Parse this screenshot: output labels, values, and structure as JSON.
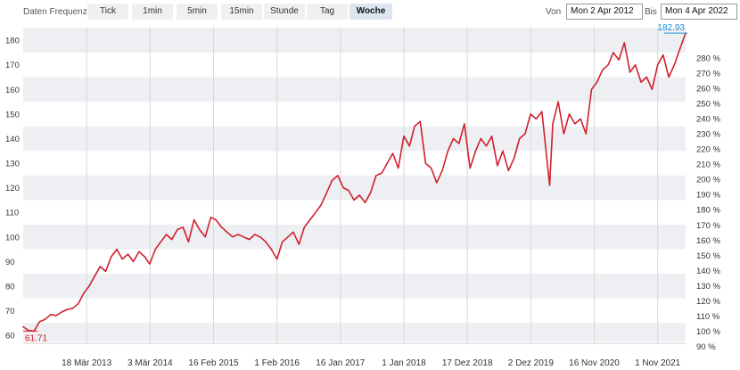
{
  "toolbar": {
    "frequency_label": "Daten Frequenz",
    "frequencies": [
      "Tick",
      "1min",
      "5min",
      "15min",
      "Stunde",
      "Tag",
      "Woche"
    ],
    "active_frequency": "Woche",
    "from_label": "Von",
    "from_value": "Mon 2 Apr 2012",
    "to_label": "Bis",
    "to_value": "Mon 4 Apr 2022"
  },
  "colors": {
    "line": "#d0202e",
    "band": "#eeeff2",
    "grid_vertical": "#d8d8d8",
    "last_value": "#1f8fd0",
    "min_value": "#d0202e"
  },
  "chart_data": {
    "type": "line",
    "series": [
      {
        "points": [
          [
            "2012-04-02",
            63.5
          ],
          [
            "2012-05-01",
            62.0
          ],
          [
            "2012-06-01",
            61.71
          ],
          [
            "2012-07-01",
            65.5
          ],
          [
            "2012-08-01",
            66.5
          ],
          [
            "2012-09-01",
            68.5
          ],
          [
            "2012-10-01",
            68.0
          ],
          [
            "2012-11-01",
            69.5
          ],
          [
            "2012-12-01",
            70.5
          ],
          [
            "2013-01-01",
            71.0
          ],
          [
            "2013-02-01",
            73.0
          ],
          [
            "2013-03-01",
            77.0
          ],
          [
            "2013-04-01",
            80.0
          ],
          [
            "2013-05-01",
            84.0
          ],
          [
            "2013-06-01",
            88.0
          ],
          [
            "2013-07-01",
            86.0
          ],
          [
            "2013-08-01",
            92.0
          ],
          [
            "2013-09-01",
            95.0
          ],
          [
            "2013-10-01",
            91.0
          ],
          [
            "2013-11-01",
            93.0
          ],
          [
            "2013-12-01",
            90.0
          ],
          [
            "2014-01-01",
            94.0
          ],
          [
            "2014-02-01",
            92.0
          ],
          [
            "2014-03-01",
            89.0
          ],
          [
            "2014-04-01",
            95.0
          ],
          [
            "2014-05-01",
            98.0
          ],
          [
            "2014-06-01",
            101.0
          ],
          [
            "2014-07-01",
            99.0
          ],
          [
            "2014-08-01",
            103.0
          ],
          [
            "2014-09-01",
            104.0
          ],
          [
            "2014-10-01",
            98.0
          ],
          [
            "2014-11-01",
            107.0
          ],
          [
            "2014-12-01",
            103.0
          ],
          [
            "2015-01-01",
            100.0
          ],
          [
            "2015-02-01",
            108.0
          ],
          [
            "2015-03-01",
            107.0
          ],
          [
            "2015-04-01",
            104.0
          ],
          [
            "2015-05-01",
            102.0
          ],
          [
            "2015-06-01",
            100.0
          ],
          [
            "2015-07-01",
            101.0
          ],
          [
            "2015-08-01",
            100.0
          ],
          [
            "2015-09-01",
            99.0
          ],
          [
            "2015-10-01",
            101.0
          ],
          [
            "2015-11-01",
            100.0
          ],
          [
            "2015-12-01",
            98.0
          ],
          [
            "2016-01-01",
            95.0
          ],
          [
            "2016-02-01",
            91.0
          ],
          [
            "2016-03-01",
            98.0
          ],
          [
            "2016-04-01",
            100.0
          ],
          [
            "2016-05-01",
            102.0
          ],
          [
            "2016-06-01",
            97.0
          ],
          [
            "2016-07-01",
            104.0
          ],
          [
            "2016-08-01",
            107.0
          ],
          [
            "2016-09-01",
            110.0
          ],
          [
            "2016-10-01",
            113.0
          ],
          [
            "2016-11-01",
            118.0
          ],
          [
            "2016-12-01",
            123.0
          ],
          [
            "2017-01-01",
            125.0
          ],
          [
            "2017-02-01",
            120.0
          ],
          [
            "2017-03-01",
            119.0
          ],
          [
            "2017-04-01",
            115.0
          ],
          [
            "2017-05-01",
            117.0
          ],
          [
            "2017-06-01",
            114.0
          ],
          [
            "2017-07-01",
            118.0
          ],
          [
            "2017-08-01",
            125.0
          ],
          [
            "2017-09-01",
            126.0
          ],
          [
            "2017-10-01",
            130.0
          ],
          [
            "2017-11-01",
            134.0
          ],
          [
            "2017-12-01",
            128.0
          ],
          [
            "2018-01-01",
            141.0
          ],
          [
            "2018-02-01",
            137.0
          ],
          [
            "2018-03-01",
            145.0
          ],
          [
            "2018-04-01",
            147.0
          ],
          [
            "2018-05-01",
            130.0
          ],
          [
            "2018-06-01",
            128.0
          ],
          [
            "2018-07-01",
            122.0
          ],
          [
            "2018-08-01",
            127.0
          ],
          [
            "2018-09-01",
            135.0
          ],
          [
            "2018-10-01",
            140.0
          ],
          [
            "2018-11-01",
            138.0
          ],
          [
            "2018-12-01",
            146.0
          ],
          [
            "2019-01-01",
            128.0
          ],
          [
            "2019-02-01",
            135.0
          ],
          [
            "2019-03-01",
            140.0
          ],
          [
            "2019-04-01",
            137.0
          ],
          [
            "2019-05-01",
            141.0
          ],
          [
            "2019-06-01",
            129.0
          ],
          [
            "2019-07-01",
            135.0
          ],
          [
            "2019-08-01",
            127.0
          ],
          [
            "2019-09-01",
            132.0
          ],
          [
            "2019-10-01",
            140.0
          ],
          [
            "2019-11-01",
            142.0
          ],
          [
            "2019-12-01",
            150.0
          ],
          [
            "2020-01-01",
            148.0
          ],
          [
            "2020-02-01",
            151.0
          ],
          [
            "2020-03-15",
            121.0
          ],
          [
            "2020-04-01",
            146.0
          ],
          [
            "2020-05-01",
            155.0
          ],
          [
            "2020-06-01",
            142.0
          ],
          [
            "2020-07-01",
            150.0
          ],
          [
            "2020-08-01",
            146.0
          ],
          [
            "2020-09-01",
            148.0
          ],
          [
            "2020-10-01",
            142.0
          ],
          [
            "2020-11-01",
            160.0
          ],
          [
            "2020-12-01",
            163.0
          ],
          [
            "2021-01-01",
            168.0
          ],
          [
            "2021-02-01",
            170.0
          ],
          [
            "2021-03-01",
            175.0
          ],
          [
            "2021-04-01",
            172.0
          ],
          [
            "2021-05-01",
            179.0
          ],
          [
            "2021-06-01",
            167.0
          ],
          [
            "2021-07-01",
            170.0
          ],
          [
            "2021-08-01",
            163.0
          ],
          [
            "2021-09-01",
            165.0
          ],
          [
            "2021-10-01",
            160.0
          ],
          [
            "2021-11-01",
            170.0
          ],
          [
            "2021-12-01",
            174.0
          ],
          [
            "2022-01-01",
            165.0
          ],
          [
            "2022-02-01",
            170.0
          ],
          [
            "2022-03-01",
            176.0
          ],
          [
            "2022-04-04",
            182.93
          ]
        ]
      }
    ],
    "y_ticks": [
      60,
      70,
      80,
      90,
      100,
      110,
      120,
      130,
      140,
      150,
      160,
      170,
      180
    ],
    "ylim": [
      57.5,
      185.5
    ],
    "y2_ticks": [
      "90 %",
      "100 %",
      "110 %",
      "120 %",
      "130 %",
      "140 %",
      "150 %",
      "160 %",
      "170 %",
      "180 %",
      "190 %",
      "200 %",
      "210 %",
      "220 %",
      "230 %",
      "240 %",
      "250 %",
      "260 %",
      "270 %",
      "280 %"
    ],
    "y2_base": 61.71,
    "xlim": [
      "2012-04-02",
      "2022-04-04"
    ],
    "x_ticks": [
      {
        "date": "2013-03-18",
        "label": "18 Mär 2013"
      },
      {
        "date": "2014-03-03",
        "label": "3 Mär 2014"
      },
      {
        "date": "2015-02-16",
        "label": "16 Feb 2015"
      },
      {
        "date": "2016-02-01",
        "label": "1 Feb 2016"
      },
      {
        "date": "2017-01-16",
        "label": "16 Jan 2017"
      },
      {
        "date": "2018-01-01",
        "label": "1 Jan 2018"
      },
      {
        "date": "2018-12-17",
        "label": "17 Dez 2018"
      },
      {
        "date": "2019-12-02",
        "label": "2 Dez 2019"
      },
      {
        "date": "2020-11-16",
        "label": "16 Nov 2020"
      },
      {
        "date": "2021-11-01",
        "label": "1 Nov 2021"
      }
    ],
    "min_label": "61.71",
    "last_label": "182.93",
    "grid": true
  }
}
